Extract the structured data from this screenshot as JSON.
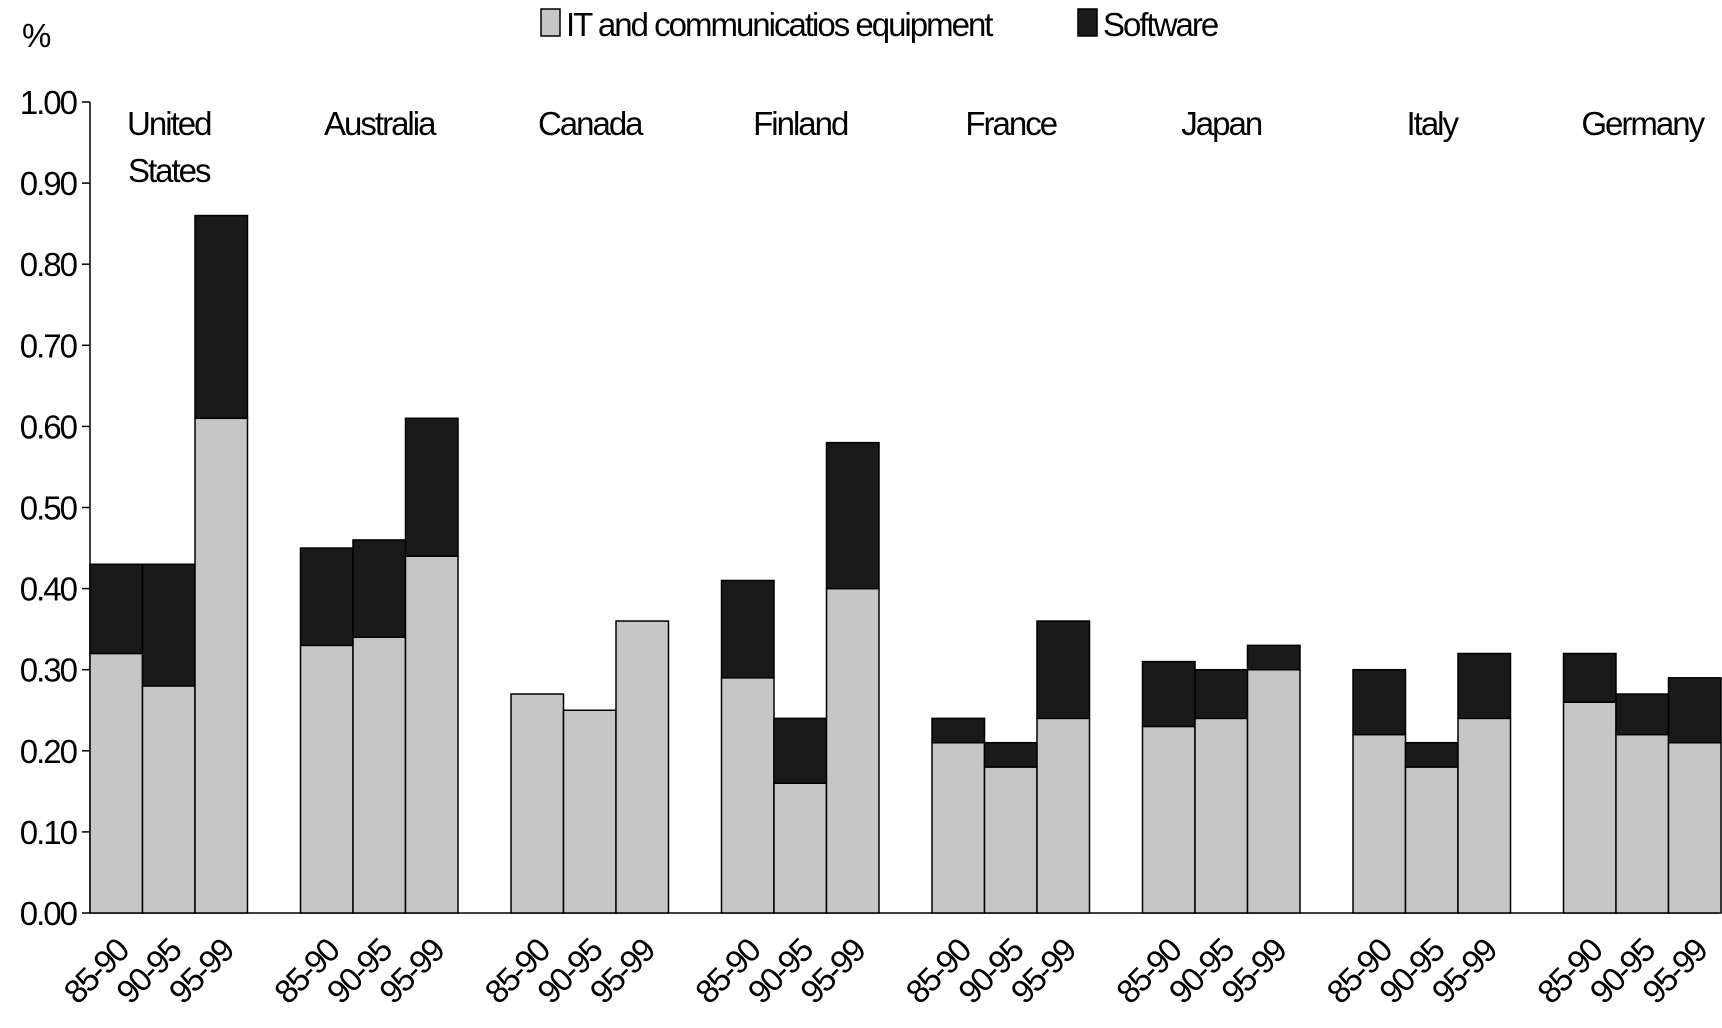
{
  "chart_data": {
    "type": "bar",
    "stacked": true,
    "unit_label": "%",
    "ylim": [
      0,
      1.0
    ],
    "y_ticks": [
      "0.00",
      "0.10",
      "0.20",
      "0.30",
      "0.40",
      "0.50",
      "0.60",
      "0.70",
      "0.80",
      "0.90",
      "1.00"
    ],
    "grid": false,
    "legend_position": "top-center",
    "groups": [
      {
        "label_lines": [
          "United",
          "States"
        ],
        "periods": [
          "85-90",
          "90-95",
          "95-99"
        ],
        "it": [
          0.32,
          0.28,
          0.61
        ],
        "software": [
          0.11,
          0.15,
          0.25
        ]
      },
      {
        "label_lines": [
          "Australia"
        ],
        "periods": [
          "85-90",
          "90-95",
          "95-99"
        ],
        "it": [
          0.33,
          0.34,
          0.44
        ],
        "software": [
          0.12,
          0.12,
          0.17
        ]
      },
      {
        "label_lines": [
          "Canada"
        ],
        "periods": [
          "85-90",
          "90-95",
          "95-99"
        ],
        "it": [
          0.27,
          0.25,
          0.36
        ],
        "software": [
          0,
          0,
          0
        ]
      },
      {
        "label_lines": [
          "Finland"
        ],
        "periods": [
          "85-90",
          "90-95",
          "95-99"
        ],
        "it": [
          0.29,
          0.16,
          0.4
        ],
        "software": [
          0.12,
          0.08,
          0.18
        ]
      },
      {
        "label_lines": [
          "France"
        ],
        "periods": [
          "85-90",
          "90-95",
          "95-99"
        ],
        "it": [
          0.21,
          0.18,
          0.24
        ],
        "software": [
          0.03,
          0.03,
          0.12
        ]
      },
      {
        "label_lines": [
          "Japan"
        ],
        "periods": [
          "85-90",
          "90-95",
          "95-99"
        ],
        "it": [
          0.23,
          0.24,
          0.3
        ],
        "software": [
          0.08,
          0.06,
          0.03
        ]
      },
      {
        "label_lines": [
          "Italy"
        ],
        "periods": [
          "85-90",
          "90-95",
          "95-99"
        ],
        "it": [
          0.22,
          0.18,
          0.24
        ],
        "software": [
          0.08,
          0.03,
          0.08
        ]
      },
      {
        "label_lines": [
          "Germany"
        ],
        "periods": [
          "85-90",
          "90-95",
          "95-99"
        ],
        "it": [
          0.26,
          0.22,
          0.21
        ],
        "software": [
          0.06,
          0.05,
          0.08
        ]
      }
    ],
    "series": [
      {
        "name": "IT and  communicatios equipment",
        "key": "it",
        "color": "#c6c6c6"
      },
      {
        "name": "Software",
        "key": "software",
        "color": "#1a1a1a"
      }
    ]
  }
}
